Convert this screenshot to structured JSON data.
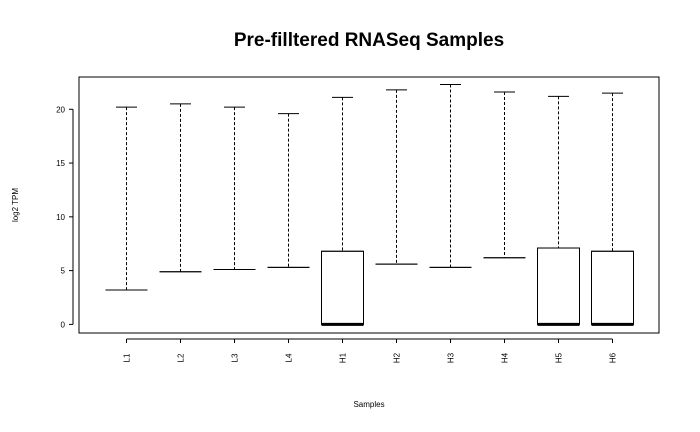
{
  "chart_data": {
    "type": "boxplot",
    "title": "Pre-filltered RNASeq Samples",
    "xlabel": "Samples",
    "ylabel": "log2 TPM",
    "ylim": [
      -0.8,
      23.0
    ],
    "yticks": [
      0,
      5,
      10,
      15,
      20
    ],
    "categories": [
      "L1",
      "L2",
      "L3",
      "L4",
      "H1",
      "H2",
      "H3",
      "H4",
      "H5",
      "H6"
    ],
    "boxes": [
      {
        "label": "L1",
        "lower": 3.2,
        "q1": 3.2,
        "median": 3.2,
        "q3": 3.2,
        "upper": 20.2
      },
      {
        "label": "L2",
        "lower": 4.9,
        "q1": 4.9,
        "median": 4.9,
        "q3": 4.9,
        "upper": 20.5
      },
      {
        "label": "L3",
        "lower": 5.1,
        "q1": 5.1,
        "median": 5.1,
        "q3": 5.1,
        "upper": 20.2
      },
      {
        "label": "L4",
        "lower": 5.3,
        "q1": 5.3,
        "median": 5.3,
        "q3": 5.3,
        "upper": 19.6
      },
      {
        "label": "H1",
        "lower": 0.0,
        "q1": 0.0,
        "median": 0.0,
        "q3": 6.8,
        "upper": 21.1
      },
      {
        "label": "H2",
        "lower": 5.6,
        "q1": 5.6,
        "median": 5.6,
        "q3": 5.6,
        "upper": 21.8
      },
      {
        "label": "H3",
        "lower": 5.3,
        "q1": 5.3,
        "median": 5.3,
        "q3": 5.3,
        "upper": 22.3
      },
      {
        "label": "H4",
        "lower": 6.2,
        "q1": 6.2,
        "median": 6.2,
        "q3": 6.2,
        "upper": 21.6
      },
      {
        "label": "H5",
        "lower": 0.0,
        "q1": 0.0,
        "median": 0.0,
        "q3": 7.1,
        "upper": 21.2
      },
      {
        "label": "H6",
        "lower": 0.0,
        "q1": 0.0,
        "median": 0.0,
        "q3": 6.8,
        "upper": 21.5
      }
    ],
    "grid": false,
    "legend": "none"
  }
}
